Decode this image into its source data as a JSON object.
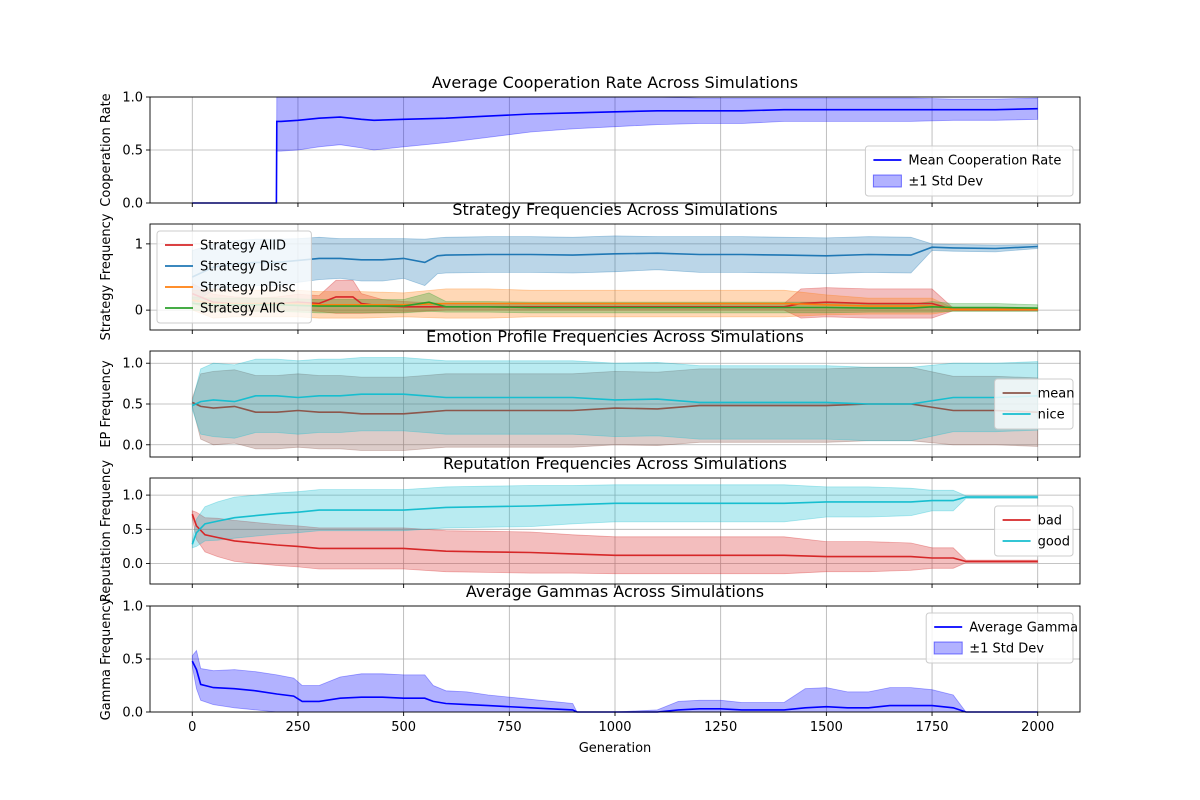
{
  "colors": {
    "blue": "#0000ff",
    "red": "#d62728",
    "tab_blue": "#1f77b4",
    "orange": "#ff7f0e",
    "green": "#2ca02c",
    "brown": "#8c564b",
    "cyan": "#17becf",
    "band_blue": "#0000ff"
  },
  "shared_xlabel": "Generation",
  "chart_data": [
    {
      "type": "line",
      "title": "Average Cooperation Rate Across Simulations",
      "ylabel": "Cooperation Rate",
      "xlim": [
        -100,
        2100
      ],
      "ylim": [
        0,
        1
      ],
      "yticks": [
        0,
        0.5,
        1
      ],
      "ytick_labels": [
        "0.0",
        "0.5",
        "1.0"
      ],
      "grid": true,
      "legend_loc": "lower right",
      "series": [
        {
          "name": "Mean Cooperation Rate",
          "color_key": "blue",
          "band_label": "±1 Std Dev",
          "x": [
            0,
            199,
            200,
            210,
            250,
            300,
            350,
            400,
            430,
            500,
            600,
            700,
            800,
            900,
            1000,
            1100,
            1200,
            1300,
            1400,
            1500,
            1600,
            1700,
            1800,
            1900,
            2000
          ],
          "mean": [
            0,
            0,
            0.77,
            0.77,
            0.78,
            0.8,
            0.81,
            0.79,
            0.78,
            0.79,
            0.8,
            0.82,
            0.84,
            0.85,
            0.86,
            0.87,
            0.87,
            0.87,
            0.88,
            0.88,
            0.88,
            0.88,
            0.88,
            0.88,
            0.89
          ],
          "std": [
            0,
            0,
            0.28,
            0.28,
            0.28,
            0.27,
            0.26,
            0.27,
            0.28,
            0.26,
            0.23,
            0.2,
            0.17,
            0.15,
            0.14,
            0.13,
            0.12,
            0.12,
            0.11,
            0.11,
            0.11,
            0.11,
            0.1,
            0.1,
            0.1
          ]
        }
      ]
    },
    {
      "type": "line",
      "title": "Strategy Frequencies Across Simulations",
      "ylabel": "Strategy Frequency",
      "xlim": [
        -100,
        2100
      ],
      "ylim": [
        -0.3,
        1.3
      ],
      "yticks": [
        0,
        1
      ],
      "ytick_labels": [
        "0",
        "1"
      ],
      "grid": true,
      "legend_loc": "upper left",
      "series": [
        {
          "name": "Strategy AllD",
          "color_key": "red",
          "x": [
            0,
            50,
            100,
            150,
            200,
            250,
            300,
            340,
            380,
            400,
            450,
            500,
            600,
            700,
            800,
            900,
            1000,
            1100,
            1200,
            1300,
            1400,
            1440,
            1500,
            1600,
            1700,
            1750,
            1800,
            1900,
            2000
          ],
          "mean": [
            0.25,
            0.12,
            0.1,
            0.08,
            0.1,
            0.12,
            0.1,
            0.2,
            0.2,
            0.1,
            0.06,
            0.05,
            0.05,
            0.05,
            0.05,
            0.05,
            0.05,
            0.05,
            0.05,
            0.05,
            0.05,
            0.1,
            0.12,
            0.1,
            0.1,
            0.1,
            0.01,
            0.01,
            0.01
          ],
          "std": [
            0.15,
            0.12,
            0.1,
            0.1,
            0.1,
            0.12,
            0.12,
            0.25,
            0.25,
            0.15,
            0.1,
            0.08,
            0.05,
            0.05,
            0.05,
            0.05,
            0.05,
            0.05,
            0.05,
            0.05,
            0.05,
            0.22,
            0.22,
            0.22,
            0.22,
            0.22,
            0.02,
            0.02,
            0.02
          ]
        },
        {
          "name": "Strategy Disc",
          "color_key": "tab_blue",
          "x": [
            0,
            50,
            100,
            150,
            200,
            250,
            300,
            350,
            400,
            450,
            500,
            550,
            580,
            600,
            700,
            800,
            900,
            1000,
            1100,
            1200,
            1300,
            1400,
            1500,
            1600,
            1700,
            1750,
            1800,
            1900,
            2000
          ],
          "mean": [
            0.5,
            0.65,
            0.7,
            0.72,
            0.72,
            0.75,
            0.78,
            0.78,
            0.76,
            0.76,
            0.78,
            0.72,
            0.82,
            0.83,
            0.84,
            0.84,
            0.83,
            0.85,
            0.86,
            0.84,
            0.84,
            0.83,
            0.82,
            0.84,
            0.83,
            0.95,
            0.94,
            0.93,
            0.96
          ],
          "std": [
            0.4,
            0.35,
            0.35,
            0.35,
            0.35,
            0.33,
            0.32,
            0.3,
            0.32,
            0.32,
            0.3,
            0.35,
            0.27,
            0.27,
            0.27,
            0.27,
            0.27,
            0.27,
            0.25,
            0.27,
            0.27,
            0.27,
            0.27,
            0.27,
            0.27,
            0.05,
            0.05,
            0.05,
            0.03
          ]
        },
        {
          "name": "Strategy pDisc",
          "color_key": "orange",
          "x": [
            0,
            50,
            100,
            150,
            200,
            250,
            300,
            400,
            500,
            600,
            700,
            800,
            900,
            1000,
            1100,
            1200,
            1300,
            1400,
            1500,
            1600,
            1700,
            1750,
            1800,
            1900,
            2000
          ],
          "mean": [
            0.15,
            0.1,
            0.1,
            0.1,
            0.1,
            0.1,
            0.08,
            0.08,
            0.08,
            0.1,
            0.1,
            0.1,
            0.1,
            0.1,
            0.1,
            0.1,
            0.1,
            0.1,
            0.08,
            0.06,
            0.06,
            0.06,
            0.01,
            0.01,
            0.01
          ],
          "std": [
            0.15,
            0.22,
            0.2,
            0.2,
            0.2,
            0.2,
            0.2,
            0.2,
            0.18,
            0.22,
            0.22,
            0.2,
            0.2,
            0.2,
            0.2,
            0.2,
            0.2,
            0.2,
            0.15,
            0.12,
            0.12,
            0.12,
            0.02,
            0.02,
            0.02
          ]
        },
        {
          "name": "Strategy AllC",
          "color_key": "green",
          "x": [
            0,
            50,
            100,
            150,
            200,
            300,
            400,
            500,
            560,
            600,
            700,
            800,
            900,
            1000,
            1100,
            1200,
            1300,
            1400,
            1500,
            1600,
            1700,
            1750,
            1800,
            1900,
            2000
          ],
          "mean": [
            0.1,
            0.08,
            0.08,
            0.08,
            0.08,
            0.06,
            0.06,
            0.06,
            0.12,
            0.05,
            0.05,
            0.04,
            0.04,
            0.04,
            0.04,
            0.04,
            0.04,
            0.04,
            0.04,
            0.03,
            0.03,
            0.05,
            0.04,
            0.04,
            0.03
          ],
          "std": [
            0.1,
            0.1,
            0.1,
            0.1,
            0.1,
            0.1,
            0.1,
            0.1,
            0.14,
            0.08,
            0.08,
            0.08,
            0.08,
            0.08,
            0.08,
            0.08,
            0.08,
            0.08,
            0.08,
            0.06,
            0.06,
            0.08,
            0.06,
            0.06,
            0.05
          ]
        }
      ]
    },
    {
      "type": "line",
      "title": "Emotion Profile Frequencies Across Simulations",
      "ylabel": "EP Frequency",
      "xlim": [
        -100,
        2100
      ],
      "ylim": [
        -0.15,
        1.15
      ],
      "yticks": [
        0,
        0.5,
        1
      ],
      "ytick_labels": [
        "0.0",
        "0.5",
        "1.0"
      ],
      "grid": true,
      "legend_loc": "center right",
      "series": [
        {
          "name": "mean",
          "color_key": "brown",
          "x": [
            0,
            20,
            50,
            100,
            150,
            200,
            250,
            300,
            350,
            400,
            450,
            500,
            550,
            600,
            700,
            800,
            900,
            1000,
            1100,
            1200,
            1300,
            1400,
            1500,
            1600,
            1700,
            1800,
            1900,
            2000
          ],
          "mean": [
            0.52,
            0.47,
            0.45,
            0.47,
            0.4,
            0.4,
            0.42,
            0.4,
            0.4,
            0.38,
            0.38,
            0.38,
            0.4,
            0.42,
            0.42,
            0.42,
            0.42,
            0.45,
            0.44,
            0.48,
            0.48,
            0.48,
            0.48,
            0.5,
            0.5,
            0.42,
            0.42,
            0.4
          ],
          "std": [
            0.05,
            0.4,
            0.45,
            0.45,
            0.45,
            0.45,
            0.45,
            0.45,
            0.45,
            0.45,
            0.45,
            0.45,
            0.45,
            0.45,
            0.45,
            0.45,
            0.45,
            0.45,
            0.45,
            0.45,
            0.45,
            0.45,
            0.45,
            0.45,
            0.45,
            0.42,
            0.42,
            0.42
          ]
        },
        {
          "name": "nice",
          "color_key": "cyan",
          "x": [
            0,
            20,
            50,
            100,
            150,
            200,
            250,
            300,
            350,
            400,
            450,
            500,
            550,
            600,
            700,
            800,
            900,
            1000,
            1100,
            1200,
            1300,
            1400,
            1500,
            1600,
            1700,
            1800,
            1900,
            2000
          ],
          "mean": [
            0.48,
            0.53,
            0.55,
            0.53,
            0.6,
            0.6,
            0.58,
            0.6,
            0.6,
            0.62,
            0.62,
            0.62,
            0.6,
            0.58,
            0.58,
            0.58,
            0.58,
            0.55,
            0.56,
            0.52,
            0.52,
            0.52,
            0.52,
            0.5,
            0.5,
            0.58,
            0.58,
            0.6
          ],
          "std": [
            0.05,
            0.4,
            0.45,
            0.45,
            0.45,
            0.45,
            0.45,
            0.45,
            0.45,
            0.45,
            0.45,
            0.45,
            0.45,
            0.45,
            0.45,
            0.45,
            0.45,
            0.45,
            0.45,
            0.45,
            0.45,
            0.45,
            0.45,
            0.45,
            0.45,
            0.42,
            0.42,
            0.42
          ]
        }
      ]
    },
    {
      "type": "line",
      "title": "Reputation Frequencies Across Simulations",
      "ylabel": "Reputation Frequency",
      "xlim": [
        -100,
        2100
      ],
      "ylim": [
        -0.3,
        1.25
      ],
      "yticks": [
        0,
        0.5,
        1
      ],
      "ytick_labels": [
        "0.0",
        "0.5",
        "1.0"
      ],
      "grid": true,
      "legend_loc": "center right",
      "series": [
        {
          "name": "bad",
          "color_key": "red",
          "x": [
            0,
            10,
            30,
            60,
            100,
            150,
            200,
            250,
            300,
            400,
            500,
            600,
            700,
            800,
            900,
            1000,
            1100,
            1200,
            1300,
            1400,
            1500,
            1600,
            1700,
            1750,
            1800,
            1830,
            1900,
            2000
          ],
          "mean": [
            0.72,
            0.55,
            0.42,
            0.38,
            0.33,
            0.3,
            0.27,
            0.25,
            0.22,
            0.22,
            0.22,
            0.18,
            0.17,
            0.16,
            0.14,
            0.12,
            0.12,
            0.12,
            0.12,
            0.12,
            0.1,
            0.1,
            0.1,
            0.08,
            0.08,
            0.03,
            0.03,
            0.03
          ],
          "std": [
            0.05,
            0.2,
            0.25,
            0.28,
            0.3,
            0.3,
            0.3,
            0.3,
            0.3,
            0.3,
            0.3,
            0.3,
            0.3,
            0.3,
            0.28,
            0.27,
            0.27,
            0.27,
            0.27,
            0.27,
            0.22,
            0.22,
            0.2,
            0.15,
            0.15,
            0.02,
            0.02,
            0.02
          ]
        },
        {
          "name": "good",
          "color_key": "cyan",
          "x": [
            0,
            10,
            30,
            60,
            100,
            150,
            200,
            250,
            300,
            400,
            500,
            600,
            700,
            800,
            900,
            1000,
            1100,
            1200,
            1300,
            1400,
            1500,
            1600,
            1700,
            1750,
            1800,
            1830,
            1900,
            2000
          ],
          "mean": [
            0.28,
            0.45,
            0.58,
            0.62,
            0.67,
            0.7,
            0.73,
            0.75,
            0.78,
            0.78,
            0.78,
            0.82,
            0.83,
            0.84,
            0.86,
            0.88,
            0.88,
            0.88,
            0.88,
            0.88,
            0.9,
            0.9,
            0.9,
            0.92,
            0.92,
            0.97,
            0.97,
            0.97
          ],
          "std": [
            0.05,
            0.2,
            0.25,
            0.28,
            0.3,
            0.3,
            0.3,
            0.3,
            0.3,
            0.3,
            0.3,
            0.3,
            0.3,
            0.3,
            0.28,
            0.27,
            0.27,
            0.27,
            0.27,
            0.27,
            0.22,
            0.22,
            0.2,
            0.15,
            0.15,
            0.02,
            0.02,
            0.02
          ]
        }
      ]
    },
    {
      "type": "line",
      "title": "Average Gammas Across Simulations",
      "ylabel": "Gamma Frequency",
      "xlabel": "Generation",
      "xlim": [
        -100,
        2100
      ],
      "ylim": [
        0,
        1
      ],
      "yticks": [
        0,
        0.5,
        1
      ],
      "ytick_labels": [
        "0.0",
        "0.5",
        "1.0"
      ],
      "xticks": [
        0,
        250,
        500,
        750,
        1000,
        1250,
        1500,
        1750,
        2000
      ],
      "xtick_labels": [
        "0",
        "250",
        "500",
        "750",
        "1000",
        "1250",
        "1500",
        "1750",
        "2000"
      ],
      "grid": true,
      "legend_loc": "upper right",
      "series": [
        {
          "name": "Average Gamma",
          "color_key": "blue",
          "band_label": "±1 Std Dev",
          "x": [
            0,
            10,
            20,
            50,
            100,
            150,
            200,
            240,
            260,
            300,
            350,
            400,
            450,
            500,
            550,
            570,
            600,
            650,
            700,
            800,
            900,
            910,
            1000,
            1100,
            1150,
            1200,
            1250,
            1300,
            1400,
            1450,
            1500,
            1550,
            1600,
            1650,
            1700,
            1750,
            1800,
            1830,
            1900,
            2000
          ],
          "mean": [
            0.48,
            0.4,
            0.26,
            0.23,
            0.22,
            0.2,
            0.17,
            0.15,
            0.1,
            0.1,
            0.13,
            0.14,
            0.14,
            0.13,
            0.13,
            0.1,
            0.08,
            0.07,
            0.06,
            0.04,
            0.02,
            0.0,
            0.0,
            0.0,
            0.02,
            0.03,
            0.03,
            0.02,
            0.02,
            0.04,
            0.05,
            0.04,
            0.04,
            0.06,
            0.06,
            0.06,
            0.04,
            0.0,
            0.0,
            0.0
          ],
          "std": [
            0.05,
            0.18,
            0.15,
            0.16,
            0.18,
            0.18,
            0.18,
            0.17,
            0.15,
            0.15,
            0.2,
            0.22,
            0.22,
            0.22,
            0.22,
            0.15,
            0.12,
            0.12,
            0.1,
            0.08,
            0.06,
            0.0,
            0.0,
            0.02,
            0.08,
            0.08,
            0.08,
            0.07,
            0.07,
            0.18,
            0.18,
            0.15,
            0.15,
            0.17,
            0.17,
            0.15,
            0.12,
            0.0,
            0.0,
            0.0
          ]
        }
      ]
    }
  ]
}
